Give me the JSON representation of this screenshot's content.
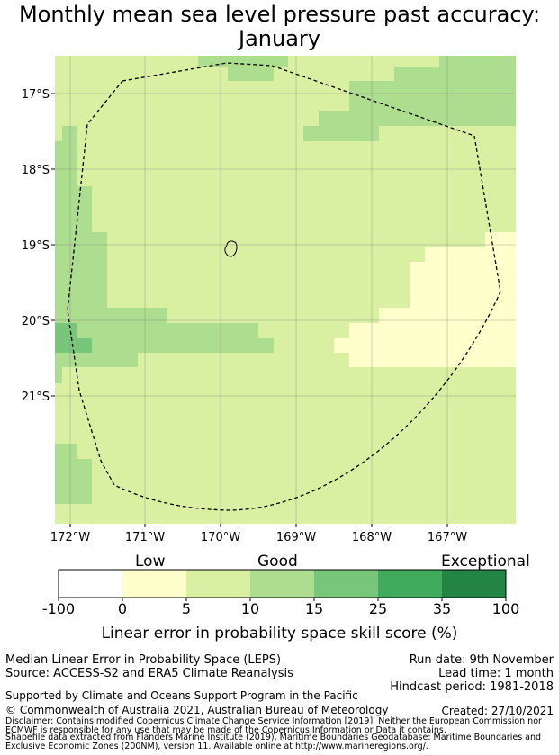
{
  "title": {
    "line1": "Monthly mean sea level pressure past accuracy:",
    "line2": "January"
  },
  "map": {
    "lat_labels": [
      "17°S",
      "18°S",
      "19°S",
      "20°S",
      "21°S"
    ],
    "lon_labels": [
      "172°W",
      "171°W",
      "170°W",
      "169°W",
      "168°W",
      "167°W"
    ],
    "colors": {
      "low": "#ffffcc",
      "good": "#d9f0a3",
      "good_plus": "#addd8e",
      "very_good": "#78c679",
      "excellent": "#41ab5d",
      "exceptional": "#238443"
    }
  },
  "colorbar": {
    "category_labels": [
      "Low",
      "Good",
      "Exceptional"
    ],
    "ticks": [
      "-100",
      "0",
      "5",
      "10",
      "15",
      "25",
      "35",
      "100"
    ],
    "colors": [
      "#ffffff",
      "#ffffcc",
      "#d9f0a3",
      "#addd8e",
      "#78c679",
      "#41ab5d",
      "#238443"
    ],
    "title": "Linear error in probability space skill score (%)"
  },
  "footer": {
    "method": "Median Linear Error in Probability Space (LEPS)",
    "source": "Source: ACCESS-S2 and ERA5 Climate Reanalysis",
    "run_date": "Run date: 9th November",
    "lead_time": "Lead time: 1 month",
    "hindcast": "Hindcast period: 1981-2018",
    "support": "Supported by Climate and Oceans Support Program in the Pacific",
    "copyright": "© Commonwealth of Australia 2021, Australian Bureau of Meteorology",
    "created": "Created: 27/10/2021",
    "disclaimer1": "Disclaimer: Contains modified Copernicus Climate Change Service Information [2019]. Neither the European Commission nor",
    "disclaimer2": "ECMWF is responsible for any use that may be made of the Copernicus Information or Data it contains.",
    "shapefile1": "Shapefile data extracted from Flanders Marine Institute (2019), Maritime Boundaries Geodatabase: Maritime Boundaries and",
    "shapefile2": "Exclusive Economic Zones (200NM), version 11. Available online at http://www.marineregions.org/."
  }
}
